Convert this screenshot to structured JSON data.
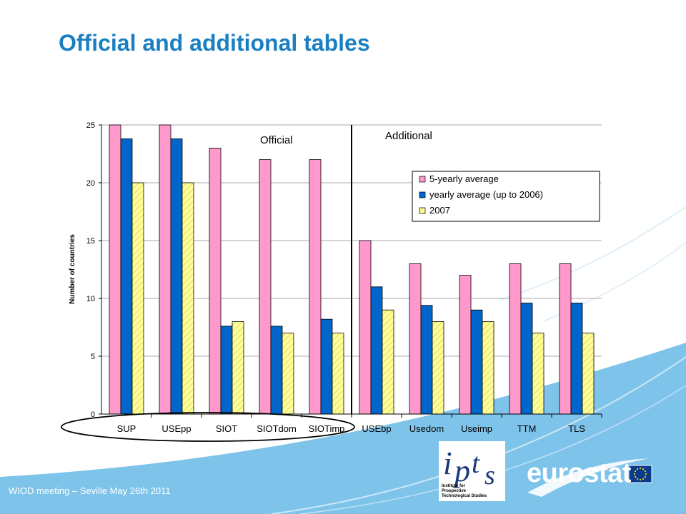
{
  "slide": {
    "title": "Official and additional tables",
    "footer": "WIOD meeting – Seville May 26th 2011",
    "logos": {
      "ipts": [
        "Institute for",
        "Prospective",
        "Technological Studies"
      ],
      "eurostat": "eurostat"
    }
  },
  "colors": {
    "title": "#1a7fc1",
    "footer_band": "#7ec3ea",
    "series": [
      "#ff99cc",
      "#0066cc",
      "#ffff99"
    ]
  },
  "icons": [
    "ipts-logo-icon",
    "eurostat-swoosh-icon",
    "eu-flag-icon"
  ],
  "chart_data": {
    "type": "bar",
    "title": "",
    "xlabel": "",
    "ylabel": "Number of countries",
    "ylim": [
      0,
      25
    ],
    "yticks": [
      0,
      5,
      10,
      15,
      20,
      25
    ],
    "grid": true,
    "legend_position": "top-right",
    "categories": [
      "SUP",
      "USEpp",
      "SIOT",
      "SIOTdom",
      "SIOTimp",
      "USEbp",
      "Usedom",
      "Useimp",
      "TTM",
      "TLS"
    ],
    "series": [
      {
        "name": "5-yearly average",
        "values": [
          25,
          25,
          23,
          22,
          22,
          15,
          13,
          12,
          13,
          13
        ]
      },
      {
        "name": "yearly average (up to 2006)",
        "values": [
          23.8,
          23.8,
          7.6,
          7.6,
          8.2,
          11,
          9.4,
          9,
          9.6,
          9.6
        ]
      },
      {
        "name": "2007",
        "values": [
          20,
          20,
          8,
          7,
          7,
          9,
          8,
          8,
          7,
          7
        ]
      }
    ],
    "annotations": [
      "Official",
      "Additional"
    ]
  }
}
